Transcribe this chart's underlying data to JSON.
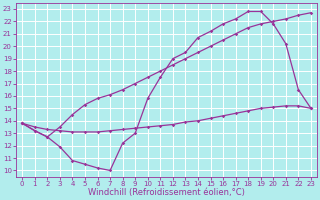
{
  "bg_color": "#b2eded",
  "grid_color": "#ffffff",
  "line_color": "#993399",
  "marker": "D",
  "markersize": 1.8,
  "linewidth": 0.9,
  "xlabel": "Windchill (Refroidissement éolien,°C)",
  "xlabel_fontsize": 6.0,
  "xlim": [
    -0.5,
    23.5
  ],
  "ylim": [
    9.5,
    23.5
  ],
  "xticks": [
    0,
    1,
    2,
    3,
    4,
    5,
    6,
    7,
    8,
    9,
    10,
    11,
    12,
    13,
    14,
    15,
    16,
    17,
    18,
    19,
    20,
    21,
    22,
    23
  ],
  "yticks": [
    10,
    11,
    12,
    13,
    14,
    15,
    16,
    17,
    18,
    19,
    20,
    21,
    22,
    23
  ],
  "tick_fontsize": 5.0,
  "curve1_x": [
    0,
    1,
    2,
    3,
    4,
    5,
    6,
    7,
    8,
    9,
    10,
    11,
    12,
    13,
    14,
    15,
    16,
    17,
    18,
    19,
    20,
    21,
    22,
    23
  ],
  "curve1_y": [
    13.8,
    13.2,
    12.7,
    11.9,
    10.8,
    10.5,
    10.2,
    10.0,
    12.2,
    13.0,
    15.8,
    17.5,
    19.0,
    19.5,
    20.7,
    21.2,
    21.8,
    22.2,
    22.8,
    22.8,
    21.8,
    20.2,
    16.5,
    15.0
  ],
  "curve2_x": [
    0,
    1,
    2,
    3,
    4,
    5,
    6,
    7,
    8,
    9,
    10,
    11,
    12,
    13,
    14,
    15,
    16,
    17,
    18,
    19,
    20,
    21,
    22,
    23
  ],
  "curve2_y": [
    13.8,
    13.5,
    13.3,
    13.2,
    13.1,
    13.1,
    13.1,
    13.2,
    13.3,
    13.4,
    13.5,
    13.6,
    13.7,
    13.9,
    14.0,
    14.2,
    14.4,
    14.6,
    14.8,
    15.0,
    15.1,
    15.2,
    15.2,
    15.0
  ],
  "curve3_x": [
    0,
    1,
    2,
    3,
    4,
    5,
    6,
    7,
    8,
    9,
    10,
    11,
    12,
    13,
    14,
    15,
    16,
    17,
    18,
    19,
    20,
    21,
    22,
    23
  ],
  "curve3_y": [
    13.8,
    13.2,
    12.7,
    13.5,
    14.5,
    15.3,
    15.8,
    16.1,
    16.5,
    17.0,
    17.5,
    18.0,
    18.5,
    19.0,
    19.5,
    20.0,
    20.5,
    21.0,
    21.5,
    21.8,
    22.0,
    22.2,
    22.5,
    22.7
  ]
}
